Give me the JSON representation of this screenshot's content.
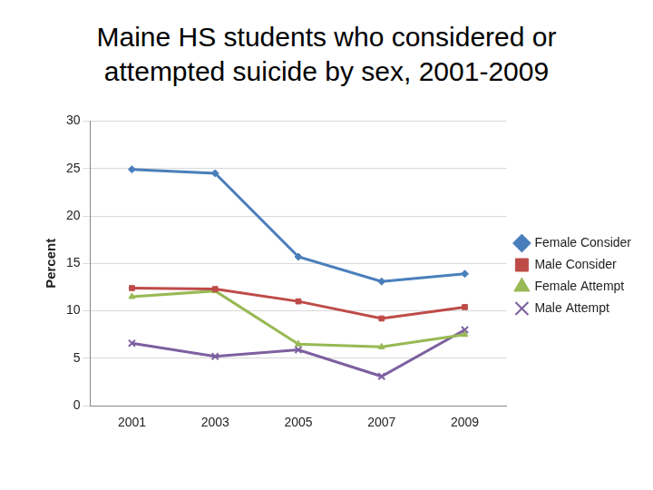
{
  "chart_data": {
    "type": "line",
    "title": "Maine HS students who considered or attempted suicide by sex, 2001-2009",
    "y_label": "Percent",
    "categories": [
      "2001",
      "2003",
      "2005",
      "2007",
      "2009"
    ],
    "series": [
      {
        "name": "Female Consider",
        "color": "#4a7ebb",
        "marker": "diamond",
        "values": [
          24.9,
          24.5,
          15.7,
          13.1,
          13.9
        ]
      },
      {
        "name": "Male Consider",
        "color": "#be4b48",
        "marker": "square",
        "values": [
          12.4,
          12.3,
          11.0,
          9.2,
          10.4
        ]
      },
      {
        "name": "Female Attempt",
        "color": "#98b954",
        "marker": "triangle",
        "values": [
          11.5,
          12.1,
          6.5,
          6.2,
          7.5
        ]
      },
      {
        "name": "Male Attempt",
        "color": "#7d60a0",
        "marker": "x",
        "values": [
          6.6,
          5.2,
          5.9,
          3.1,
          8.0
        ]
      }
    ],
    "ylim": [
      0,
      30
    ],
    "yticks": [
      0,
      5,
      10,
      15,
      20,
      25,
      30
    ],
    "grid": true,
    "legend": "right"
  }
}
